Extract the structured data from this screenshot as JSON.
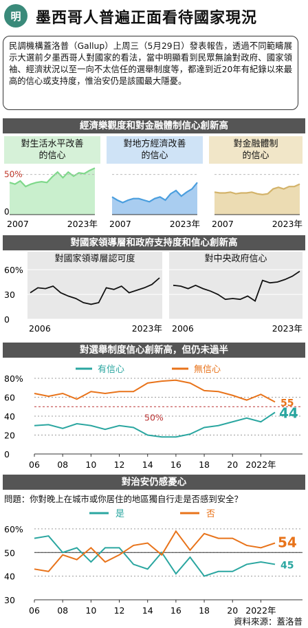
{
  "header": {
    "logo": "明",
    "title": "墨西哥人普遍正面看待國家現況"
  },
  "intro": "民調機構蓋洛普（Gallup）上周三（5月29日）發表報告，透過不同範疇展示大選前夕墨西哥人對國家的看法，當中明顯看到民眾無論對政府、國家領袖、經濟狀況以至一向不太信任的選舉制度等，都達到近20年有紀錄以來最高的信心或支持度，惟治安仍是該國最大隱憂。",
  "section1": {
    "title": "經濟樂觀度和對金融體制信心創新高",
    "panels": [
      {
        "label": "對生活水平改善\n的信心",
        "color": "#7ed88a",
        "fill": "#c9efcd",
        "bg": "#d6f1d8"
      },
      {
        "label": "對地方經濟改善\n的信心",
        "color": "#4a9ede",
        "fill": "#a9cdf0",
        "bg": "#cfe3f6"
      },
      {
        "label": "對金融體制\n的信心",
        "color": "#d3b36a",
        "fill": "#ecdcb3",
        "bg": "#f1e6c8"
      }
    ],
    "y_label_top": "50%",
    "y_label_zero": "0",
    "x_start": "2007",
    "x_end": "2023年"
  },
  "section2": {
    "title": "對國家領導層和政府支持度和信心創新高",
    "panels": [
      {
        "label": "對國家領導層認可度"
      },
      {
        "label": "對中央政府信心"
      }
    ],
    "y_ticks": [
      "60%",
      "30",
      "0"
    ],
    "x_start": "2006",
    "x_end": "2023年"
  },
  "section3": {
    "title": "對選舉制度信心創新高，但仍未過半",
    "legend": [
      {
        "name": "有信心",
        "color": "#2aa6a0"
      },
      {
        "name": "無信心",
        "color": "#e8731a"
      }
    ],
    "y_ticks": [
      "80%",
      "60",
      "40",
      "20",
      "0"
    ],
    "x_ticks": [
      "06",
      "08",
      "10",
      "12",
      "14",
      "16",
      "18",
      "20",
      "2022年"
    ],
    "annot_50": "50%",
    "end_label_conf": "44",
    "end_label_noconf": "55"
  },
  "section4": {
    "title": "對治安仍感憂心",
    "question": "問題：你對晚上在城市或你居住的地區獨自行走是否感到安全？",
    "legend": [
      {
        "name": "是",
        "color": "#2aa6a0"
      },
      {
        "name": "否",
        "color": "#e8731a"
      }
    ],
    "y_ticks": [
      "60%",
      "50",
      "40",
      "30"
    ],
    "x_ticks": [
      "06",
      "08",
      "10",
      "12",
      "14",
      "16",
      "18",
      "20",
      "2022年"
    ],
    "end_label_yes": "45",
    "end_label_no": "54"
  },
  "source": "資料來源：蓋洛普",
  "chart_data": [
    {
      "type": "area",
      "title": "對生活水平改善的信心",
      "x": [
        2007,
        2008,
        2009,
        2010,
        2011,
        2012,
        2013,
        2014,
        2015,
        2016,
        2017,
        2018,
        2019,
        2020,
        2021,
        2022,
        2023
      ],
      "values": [
        40,
        38,
        42,
        35,
        38,
        40,
        41,
        40,
        47,
        53,
        46,
        53,
        48,
        52,
        51,
        55,
        58
      ],
      "ylim": [
        0,
        60
      ]
    },
    {
      "type": "area",
      "title": "對地方經濟改善的信心",
      "x": [
        2007,
        2008,
        2009,
        2010,
        2011,
        2012,
        2013,
        2014,
        2015,
        2016,
        2017,
        2018,
        2019,
        2020,
        2021,
        2022,
        2023
      ],
      "values": [
        22,
        18,
        15,
        18,
        20,
        20,
        18,
        16,
        20,
        22,
        18,
        26,
        30,
        23,
        28,
        32,
        40
      ],
      "ylim": [
        0,
        60
      ]
    },
    {
      "type": "area",
      "title": "對金融體制的信心",
      "x": [
        2007,
        2008,
        2009,
        2010,
        2011,
        2012,
        2013,
        2014,
        2015,
        2016,
        2017,
        2018,
        2019,
        2020,
        2021,
        2022,
        2023
      ],
      "values": [
        28,
        27,
        27,
        28,
        26,
        27,
        27,
        28,
        26,
        25,
        26,
        32,
        34,
        32,
        35,
        35,
        38
      ],
      "ylim": [
        0,
        60
      ]
    },
    {
      "type": "line",
      "title": "對國家領導層認可度",
      "x": [
        2006,
        2007,
        2008,
        2009,
        2010,
        2011,
        2012,
        2013,
        2014,
        2015,
        2016,
        2017,
        2018,
        2019,
        2020,
        2021,
        2022,
        2023
      ],
      "values": [
        32,
        38,
        37,
        40,
        32,
        28,
        25,
        20,
        18,
        20,
        38,
        36,
        40,
        32,
        35,
        38,
        42,
        50
      ],
      "ylim": [
        0,
        60
      ]
    },
    {
      "type": "line",
      "title": "對中央政府信心",
      "x": [
        2006,
        2007,
        2008,
        2009,
        2010,
        2011,
        2012,
        2013,
        2014,
        2015,
        2016,
        2017,
        2018,
        2019,
        2020,
        2021,
        2022,
        2023
      ],
      "values": [
        41,
        40,
        37,
        41,
        37,
        34,
        30,
        24,
        25,
        24,
        28,
        22,
        47,
        44,
        45,
        48,
        52,
        58
      ],
      "ylim": [
        0,
        60
      ]
    },
    {
      "type": "line",
      "title": "對選舉制度信心創新高，但仍未過半",
      "x": [
        2006,
        2007,
        2008,
        2009,
        2010,
        2011,
        2012,
        2013,
        2014,
        2015,
        2016,
        2017,
        2018,
        2019,
        2020,
        2021,
        2022,
        2023
      ],
      "series": [
        {
          "name": "有信心",
          "values": [
            30,
            31,
            27,
            32,
            30,
            26,
            30,
            28,
            20,
            18,
            18,
            21,
            28,
            30,
            34,
            38,
            34,
            44
          ]
        },
        {
          "name": "無信心",
          "values": [
            64,
            61,
            64,
            58,
            66,
            64,
            66,
            66,
            75,
            77,
            78,
            75,
            67,
            66,
            62,
            57,
            63,
            55
          ]
        }
      ],
      "ylim": [
        0,
        80
      ]
    },
    {
      "type": "line",
      "title": "對治安仍感憂心",
      "x": [
        2006,
        2007,
        2008,
        2009,
        2010,
        2011,
        2012,
        2013,
        2014,
        2015,
        2016,
        2017,
        2018,
        2019,
        2020,
        2021,
        2022,
        2023
      ],
      "series": [
        {
          "name": "是",
          "values": [
            56,
            57,
            50,
            52,
            46,
            52,
            52,
            45,
            43,
            50,
            41,
            48,
            40,
            42,
            42,
            45,
            46,
            45
          ]
        },
        {
          "name": "否",
          "values": [
            43,
            42,
            49,
            47,
            52,
            46,
            49,
            53,
            54,
            49,
            59,
            51,
            58,
            56,
            56,
            53,
            52,
            54
          ]
        }
      ],
      "ylim": [
        30,
        62
      ]
    }
  ]
}
